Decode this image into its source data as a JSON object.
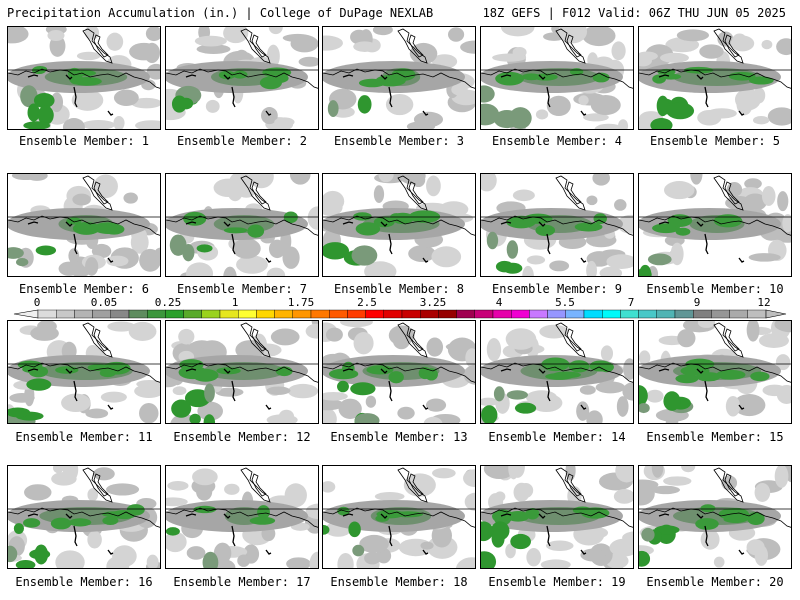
{
  "header": {
    "left": "Precipitation Accumulation (in.) | College of DuPage NEXLAB",
    "right": "18Z GEFS | F012 Valid: 06Z THU JUN 05 2025"
  },
  "colorbar": {
    "labels": [
      "0",
      "0.05",
      "0.25",
      "1",
      "1.75",
      "2.5",
      "3.25",
      "4",
      "5.5",
      "7",
      "9",
      "12"
    ],
    "colors": [
      "#dcdcdc",
      "#c8c8c8",
      "#b4b4b4",
      "#a0a0a0",
      "#888888",
      "#5e8c5e",
      "#3c963c",
      "#2ca02c",
      "#5aaa2a",
      "#9ad21e",
      "#e6e61e",
      "#ffff32",
      "#ffd700",
      "#ffb400",
      "#ff9600",
      "#ff7800",
      "#ff5a00",
      "#ff3c00",
      "#ff0000",
      "#e10000",
      "#c80000",
      "#aa0000",
      "#960000",
      "#a00050",
      "#c80078",
      "#e600aa",
      "#f000d2",
      "#c878ff",
      "#9696ff",
      "#78b4ff",
      "#00dcff",
      "#00fafa",
      "#40e0d0",
      "#48c8c8",
      "#50b4b4",
      "#609696",
      "#808080",
      "#969696",
      "#aaaaaa",
      "#bebebe"
    ]
  },
  "members": [
    {
      "label": "Ensemble Member: 1",
      "intensity": 0.75
    },
    {
      "label": "Ensemble Member: 2",
      "intensity": 0.6
    },
    {
      "label": "Ensemble Member: 3",
      "intensity": 0.35
    },
    {
      "label": "Ensemble Member: 4",
      "intensity": 0.75
    },
    {
      "label": "Ensemble Member: 5",
      "intensity": 0.8
    },
    {
      "label": "Ensemble Member: 6",
      "intensity": 0.5
    },
    {
      "label": "Ensemble Member: 7",
      "intensity": 0.55
    },
    {
      "label": "Ensemble Member: 8",
      "intensity": 0.7
    },
    {
      "label": "Ensemble Member: 9",
      "intensity": 0.6
    },
    {
      "label": "Ensemble Member: 10",
      "intensity": 0.5
    },
    {
      "label": "Ensemble Member: 11",
      "intensity": 0.85
    },
    {
      "label": "Ensemble Member: 12",
      "intensity": 0.75
    },
    {
      "label": "Ensemble Member: 13",
      "intensity": 0.7
    },
    {
      "label": "Ensemble Member: 14",
      "intensity": 0.7
    },
    {
      "label": "Ensemble Member: 15",
      "intensity": 0.8
    },
    {
      "label": "Ensemble Member: 16",
      "intensity": 0.85
    },
    {
      "label": "Ensemble Member: 17",
      "intensity": 0.35
    },
    {
      "label": "Ensemble Member: 18",
      "intensity": 0.55
    },
    {
      "label": "Ensemble Member: 19",
      "intensity": 0.75
    },
    {
      "label": "Ensemble Member: 20",
      "intensity": 0.8
    }
  ]
}
